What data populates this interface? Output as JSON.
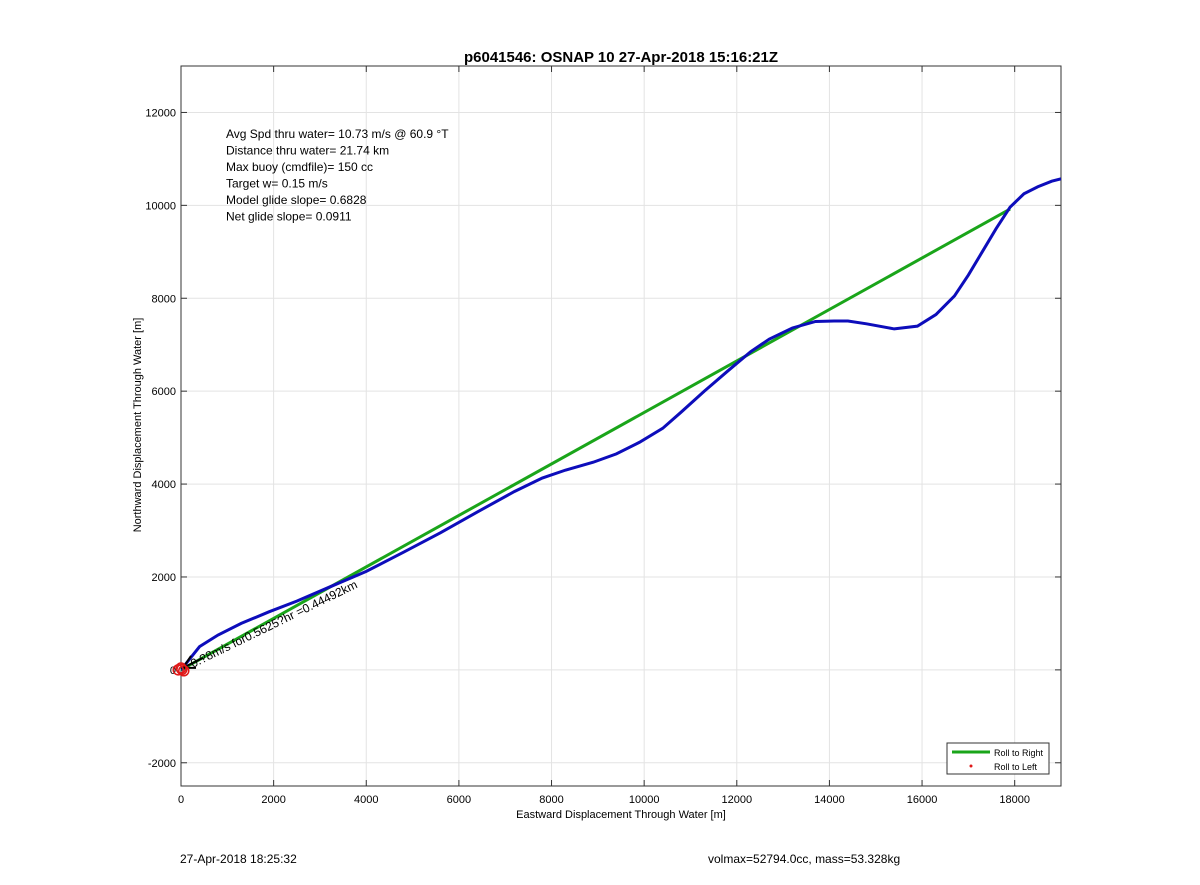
{
  "chart_data": {
    "type": "line",
    "title": "p6041546: OSNAP 10 27-Apr-2018 15:16:21Z",
    "xlabel": "Eastward Displacement Through Water [m]",
    "ylabel": "Northward Displacement Through Water [m]",
    "xlim": [
      0,
      19000
    ],
    "ylim": [
      -2500,
      13000
    ],
    "xticks": [
      0,
      2000,
      4000,
      6000,
      8000,
      10000,
      12000,
      14000,
      16000,
      18000
    ],
    "yticks": [
      -2000,
      0,
      2000,
      4000,
      6000,
      8000,
      10000,
      12000
    ],
    "grid": true,
    "series": [
      {
        "name": "Roll to Right",
        "color": "#1aa51a",
        "x": [
          0,
          17900
        ],
        "y": [
          0,
          9920
        ]
      },
      {
        "name": "",
        "color": "#0d0dbb",
        "x": [
          0,
          400,
          800,
          1300,
          1900,
          2500,
          3200,
          4000,
          4800,
          5600,
          6400,
          7200,
          7800,
          8300,
          8900,
          9400,
          9900,
          10400,
          10800,
          11300,
          11800,
          12300,
          12700,
          13200,
          13700,
          14100,
          14400,
          14800,
          15400,
          15900,
          16300,
          16700,
          17000,
          17300,
          17600,
          17900,
          18200,
          18500,
          18800,
          19000
        ],
        "y": [
          0,
          500,
          750,
          1000,
          1250,
          1480,
          1780,
          2120,
          2530,
          2950,
          3400,
          3840,
          4130,
          4300,
          4470,
          4650,
          4900,
          5200,
          5550,
          6000,
          6430,
          6850,
          7120,
          7360,
          7500,
          7510,
          7510,
          7450,
          7340,
          7400,
          7650,
          8050,
          8500,
          9000,
          9500,
          9960,
          10250,
          10400,
          10520,
          10570
        ]
      },
      {
        "name": "Roll to Left",
        "color": "#e01818",
        "marker": "dot",
        "x": [],
        "y": []
      }
    ],
    "start_marker": {
      "color": "#e01818",
      "x": [
        -60,
        0,
        60,
        20
      ],
      "y": [
        0,
        40,
        -20,
        10
      ]
    },
    "arrow": {
      "label": "0.78m/s for 0.5625hr = 0.44492km",
      "label_display": "0.?8m/s for0.5625?hr =0.44492km",
      "color": "#000000"
    },
    "legend": {
      "position": "bottom-right"
    },
    "annotations": [
      "Avg Spd thru water= 10.73 m/s @  60.9 °T",
      "Distance thru water= 21.74 km",
      "Max buoy (cmdfile)= 150 cc",
      "Target w= 0.15 m/s",
      "Model glide slope= 0.6828",
      "Net glide slope= 0.0911"
    ]
  },
  "footer": {
    "left": "27-Apr-2018 18:25:32",
    "right": "volmax=52794.0cc, mass=53.328kg"
  }
}
